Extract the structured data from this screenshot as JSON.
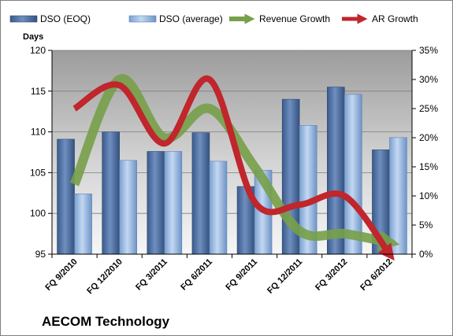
{
  "company": "AECOM Technology",
  "chart_data": {
    "type": "bar",
    "categories": [
      "FQ 9/2010",
      "FQ 12/2010",
      "FQ 3/2011",
      "FQ 6/2011",
      "FQ 9/2011",
      "FQ 12/2011",
      "FQ 3/2012",
      "FQ 6/2012"
    ],
    "series": [
      {
        "name": "DSO (EOQ)",
        "kind": "bar",
        "axis": "left",
        "color": "#4f6fa0",
        "values": [
          109.1,
          110.0,
          107.6,
          109.9,
          103.3,
          114.0,
          115.5,
          107.8
        ]
      },
      {
        "name": "DSO (average)",
        "kind": "bar",
        "axis": "left",
        "color": "#8fb2dd",
        "values": [
          102.4,
          106.5,
          107.6,
          106.4,
          105.3,
          110.8,
          114.6,
          109.3
        ]
      },
      {
        "name": "Revenue Growth",
        "kind": "line",
        "axis": "right",
        "color": "#77a04a",
        "values": [
          12.0,
          30.0,
          20.0,
          25.0,
          15.0,
          4.0,
          3.5,
          2.0
        ]
      },
      {
        "name": "AR Growth",
        "kind": "line",
        "axis": "right",
        "color": "#c0262b",
        "values": [
          25.0,
          29.0,
          19.0,
          30.0,
          9.0,
          8.5,
          10.0,
          0.0
        ]
      }
    ],
    "ylabel": "Days",
    "ylim": [
      95,
      120
    ],
    "yticks": [
      95,
      100,
      105,
      110,
      115,
      120
    ],
    "y2lim": [
      0,
      35
    ],
    "y2ticks": [
      "0%",
      "5%",
      "10%",
      "15%",
      "20%",
      "25%",
      "30%",
      "35%"
    ],
    "legend_position": "top"
  }
}
